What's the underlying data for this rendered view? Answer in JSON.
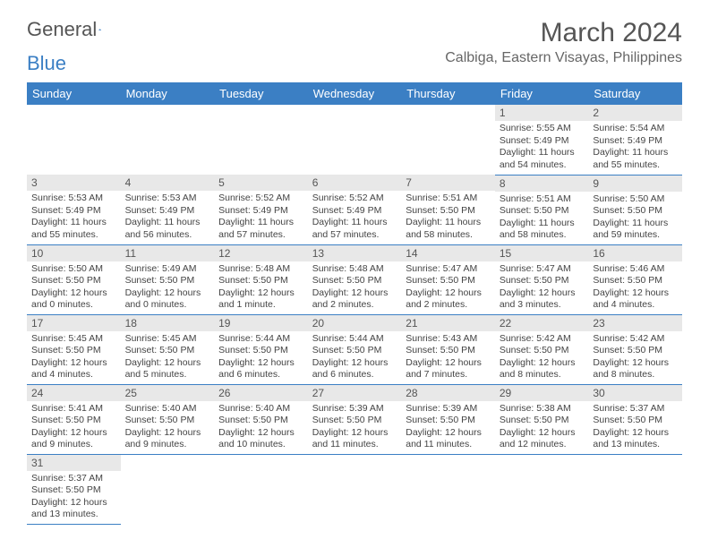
{
  "brand": {
    "part1": "General",
    "part2": "Blue"
  },
  "title": "March 2024",
  "location": "Calbiga, Eastern Visayas, Philippines",
  "colors": {
    "header_bg": "#3b7fc4",
    "daynum_bg": "#e8e8e8",
    "border": "#3b7fc4",
    "text": "#444444"
  },
  "dayHeaders": [
    "Sunday",
    "Monday",
    "Tuesday",
    "Wednesday",
    "Thursday",
    "Friday",
    "Saturday"
  ],
  "weeks": [
    [
      {
        "n": "",
        "sr": "",
        "ss": "",
        "dl": ""
      },
      {
        "n": "",
        "sr": "",
        "ss": "",
        "dl": ""
      },
      {
        "n": "",
        "sr": "",
        "ss": "",
        "dl": ""
      },
      {
        "n": "",
        "sr": "",
        "ss": "",
        "dl": ""
      },
      {
        "n": "",
        "sr": "",
        "ss": "",
        "dl": ""
      },
      {
        "n": "1",
        "sr": "Sunrise: 5:55 AM",
        "ss": "Sunset: 5:49 PM",
        "dl": "Daylight: 11 hours and 54 minutes."
      },
      {
        "n": "2",
        "sr": "Sunrise: 5:54 AM",
        "ss": "Sunset: 5:49 PM",
        "dl": "Daylight: 11 hours and 55 minutes."
      }
    ],
    [
      {
        "n": "3",
        "sr": "Sunrise: 5:53 AM",
        "ss": "Sunset: 5:49 PM",
        "dl": "Daylight: 11 hours and 55 minutes."
      },
      {
        "n": "4",
        "sr": "Sunrise: 5:53 AM",
        "ss": "Sunset: 5:49 PM",
        "dl": "Daylight: 11 hours and 56 minutes."
      },
      {
        "n": "5",
        "sr": "Sunrise: 5:52 AM",
        "ss": "Sunset: 5:49 PM",
        "dl": "Daylight: 11 hours and 57 minutes."
      },
      {
        "n": "6",
        "sr": "Sunrise: 5:52 AM",
        "ss": "Sunset: 5:49 PM",
        "dl": "Daylight: 11 hours and 57 minutes."
      },
      {
        "n": "7",
        "sr": "Sunrise: 5:51 AM",
        "ss": "Sunset: 5:50 PM",
        "dl": "Daylight: 11 hours and 58 minutes."
      },
      {
        "n": "8",
        "sr": "Sunrise: 5:51 AM",
        "ss": "Sunset: 5:50 PM",
        "dl": "Daylight: 11 hours and 58 minutes."
      },
      {
        "n": "9",
        "sr": "Sunrise: 5:50 AM",
        "ss": "Sunset: 5:50 PM",
        "dl": "Daylight: 11 hours and 59 minutes."
      }
    ],
    [
      {
        "n": "10",
        "sr": "Sunrise: 5:50 AM",
        "ss": "Sunset: 5:50 PM",
        "dl": "Daylight: 12 hours and 0 minutes."
      },
      {
        "n": "11",
        "sr": "Sunrise: 5:49 AM",
        "ss": "Sunset: 5:50 PM",
        "dl": "Daylight: 12 hours and 0 minutes."
      },
      {
        "n": "12",
        "sr": "Sunrise: 5:48 AM",
        "ss": "Sunset: 5:50 PM",
        "dl": "Daylight: 12 hours and 1 minute."
      },
      {
        "n": "13",
        "sr": "Sunrise: 5:48 AM",
        "ss": "Sunset: 5:50 PM",
        "dl": "Daylight: 12 hours and 2 minutes."
      },
      {
        "n": "14",
        "sr": "Sunrise: 5:47 AM",
        "ss": "Sunset: 5:50 PM",
        "dl": "Daylight: 12 hours and 2 minutes."
      },
      {
        "n": "15",
        "sr": "Sunrise: 5:47 AM",
        "ss": "Sunset: 5:50 PM",
        "dl": "Daylight: 12 hours and 3 minutes."
      },
      {
        "n": "16",
        "sr": "Sunrise: 5:46 AM",
        "ss": "Sunset: 5:50 PM",
        "dl": "Daylight: 12 hours and 4 minutes."
      }
    ],
    [
      {
        "n": "17",
        "sr": "Sunrise: 5:45 AM",
        "ss": "Sunset: 5:50 PM",
        "dl": "Daylight: 12 hours and 4 minutes."
      },
      {
        "n": "18",
        "sr": "Sunrise: 5:45 AM",
        "ss": "Sunset: 5:50 PM",
        "dl": "Daylight: 12 hours and 5 minutes."
      },
      {
        "n": "19",
        "sr": "Sunrise: 5:44 AM",
        "ss": "Sunset: 5:50 PM",
        "dl": "Daylight: 12 hours and 6 minutes."
      },
      {
        "n": "20",
        "sr": "Sunrise: 5:44 AM",
        "ss": "Sunset: 5:50 PM",
        "dl": "Daylight: 12 hours and 6 minutes."
      },
      {
        "n": "21",
        "sr": "Sunrise: 5:43 AM",
        "ss": "Sunset: 5:50 PM",
        "dl": "Daylight: 12 hours and 7 minutes."
      },
      {
        "n": "22",
        "sr": "Sunrise: 5:42 AM",
        "ss": "Sunset: 5:50 PM",
        "dl": "Daylight: 12 hours and 8 minutes."
      },
      {
        "n": "23",
        "sr": "Sunrise: 5:42 AM",
        "ss": "Sunset: 5:50 PM",
        "dl": "Daylight: 12 hours and 8 minutes."
      }
    ],
    [
      {
        "n": "24",
        "sr": "Sunrise: 5:41 AM",
        "ss": "Sunset: 5:50 PM",
        "dl": "Daylight: 12 hours and 9 minutes."
      },
      {
        "n": "25",
        "sr": "Sunrise: 5:40 AM",
        "ss": "Sunset: 5:50 PM",
        "dl": "Daylight: 12 hours and 9 minutes."
      },
      {
        "n": "26",
        "sr": "Sunrise: 5:40 AM",
        "ss": "Sunset: 5:50 PM",
        "dl": "Daylight: 12 hours and 10 minutes."
      },
      {
        "n": "27",
        "sr": "Sunrise: 5:39 AM",
        "ss": "Sunset: 5:50 PM",
        "dl": "Daylight: 12 hours and 11 minutes."
      },
      {
        "n": "28",
        "sr": "Sunrise: 5:39 AM",
        "ss": "Sunset: 5:50 PM",
        "dl": "Daylight: 12 hours and 11 minutes."
      },
      {
        "n": "29",
        "sr": "Sunrise: 5:38 AM",
        "ss": "Sunset: 5:50 PM",
        "dl": "Daylight: 12 hours and 12 minutes."
      },
      {
        "n": "30",
        "sr": "Sunrise: 5:37 AM",
        "ss": "Sunset: 5:50 PM",
        "dl": "Daylight: 12 hours and 13 minutes."
      }
    ],
    [
      {
        "n": "31",
        "sr": "Sunrise: 5:37 AM",
        "ss": "Sunset: 5:50 PM",
        "dl": "Daylight: 12 hours and 13 minutes."
      },
      {
        "n": "",
        "sr": "",
        "ss": "",
        "dl": ""
      },
      {
        "n": "",
        "sr": "",
        "ss": "",
        "dl": ""
      },
      {
        "n": "",
        "sr": "",
        "ss": "",
        "dl": ""
      },
      {
        "n": "",
        "sr": "",
        "ss": "",
        "dl": ""
      },
      {
        "n": "",
        "sr": "",
        "ss": "",
        "dl": ""
      },
      {
        "n": "",
        "sr": "",
        "ss": "",
        "dl": ""
      }
    ]
  ]
}
